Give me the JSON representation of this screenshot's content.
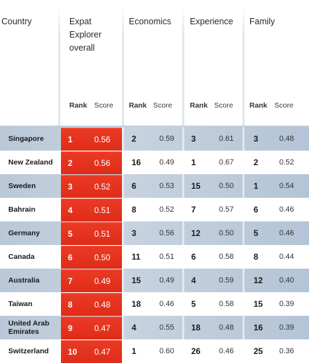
{
  "header": {
    "country_label": "Country",
    "overall_label": "Expat\nExplorer\noverall",
    "economics_label": "Economics",
    "experience_label": "Experience",
    "family_label": "Family",
    "rank_label": "Rank",
    "score_label": "Score"
  },
  "rows": [
    {
      "country": "Singapore",
      "overall_rank": "1",
      "overall_score": "0.56",
      "econ_rank": "2",
      "econ_score": "0.59",
      "exp_rank": "3",
      "exp_score": "0.61",
      "fam_rank": "3",
      "fam_score": "0.48"
    },
    {
      "country": "New Zealand",
      "overall_rank": "2",
      "overall_score": "0.56",
      "econ_rank": "16",
      "econ_score": "0.49",
      "exp_rank": "1",
      "exp_score": "0.67",
      "fam_rank": "2",
      "fam_score": "0.52"
    },
    {
      "country": "Sweden",
      "overall_rank": "3",
      "overall_score": "0.52",
      "econ_rank": "6",
      "econ_score": "0.53",
      "exp_rank": "15",
      "exp_score": "0.50",
      "fam_rank": "1",
      "fam_score": "0.54"
    },
    {
      "country": "Bahrain",
      "overall_rank": "4",
      "overall_score": "0.51",
      "econ_rank": "8",
      "econ_score": "0.52",
      "exp_rank": "7",
      "exp_score": "0.57",
      "fam_rank": "6",
      "fam_score": "0.46"
    },
    {
      "country": "Germany",
      "overall_rank": "5",
      "overall_score": "0.51",
      "econ_rank": "3",
      "econ_score": "0.56",
      "exp_rank": "12",
      "exp_score": "0.50",
      "fam_rank": "5",
      "fam_score": "0.46"
    },
    {
      "country": "Canada",
      "overall_rank": "6",
      "overall_score": "0.50",
      "econ_rank": "11",
      "econ_score": "0.51",
      "exp_rank": "6",
      "exp_score": "0.58",
      "fam_rank": "8",
      "fam_score": "0.44"
    },
    {
      "country": "Australia",
      "overall_rank": "7",
      "overall_score": "0.49",
      "econ_rank": "15",
      "econ_score": "0.49",
      "exp_rank": "4",
      "exp_score": "0.59",
      "fam_rank": "12",
      "fam_score": "0.40"
    },
    {
      "country": "Taiwan",
      "overall_rank": "8",
      "overall_score": "0.48",
      "econ_rank": "18",
      "econ_score": "0.46",
      "exp_rank": "5",
      "exp_score": "0.58",
      "fam_rank": "15",
      "fam_score": "0.39"
    },
    {
      "country": "United Arab Emirates",
      "overall_rank": "9",
      "overall_score": "0.47",
      "econ_rank": "4",
      "econ_score": "0.55",
      "exp_rank": "18",
      "exp_score": "0.48",
      "fam_rank": "16",
      "fam_score": "0.39"
    },
    {
      "country": "Switzerland",
      "overall_rank": "10",
      "overall_score": "0.47",
      "econ_rank": "1",
      "econ_score": "0.60",
      "exp_rank": "26",
      "exp_score": "0.46",
      "fam_rank": "25",
      "fam_score": "0.36"
    }
  ]
}
